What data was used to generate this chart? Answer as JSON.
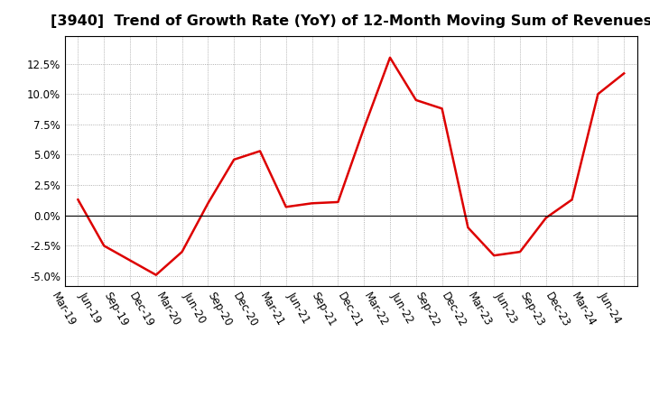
{
  "title": "[3940]  Trend of Growth Rate (YoY) of 12-Month Moving Sum of Revenues",
  "x_labels": [
    "Mar-19",
    "Jun-19",
    "Sep-19",
    "Dec-19",
    "Mar-20",
    "Jun-20",
    "Sep-20",
    "Dec-20",
    "Mar-21",
    "Jun-21",
    "Sep-21",
    "Dec-21",
    "Mar-22",
    "Jun-22",
    "Sep-22",
    "Dec-22",
    "Mar-23",
    "Jun-23",
    "Sep-23",
    "Dec-23",
    "Mar-24",
    "Jun-24"
  ],
  "y_values": [
    0.013,
    -0.025,
    -0.037,
    -0.049,
    -0.03,
    0.01,
    0.046,
    0.053,
    0.007,
    0.01,
    0.011,
    0.072,
    0.13,
    0.095,
    0.088,
    -0.01,
    -0.033,
    -0.03,
    -0.002,
    0.013,
    0.1,
    0.117
  ],
  "line_color": "#dd0000",
  "line_width": 1.8,
  "ylim": [
    -0.058,
    0.148
  ],
  "yticks": [
    -0.05,
    -0.025,
    0.0,
    0.025,
    0.05,
    0.075,
    0.1,
    0.125
  ],
  "background_color": "#ffffff",
  "grid_color": "#999999",
  "title_fontsize": 11.5,
  "tick_fontsize": 8.5,
  "label_rotation": -60
}
